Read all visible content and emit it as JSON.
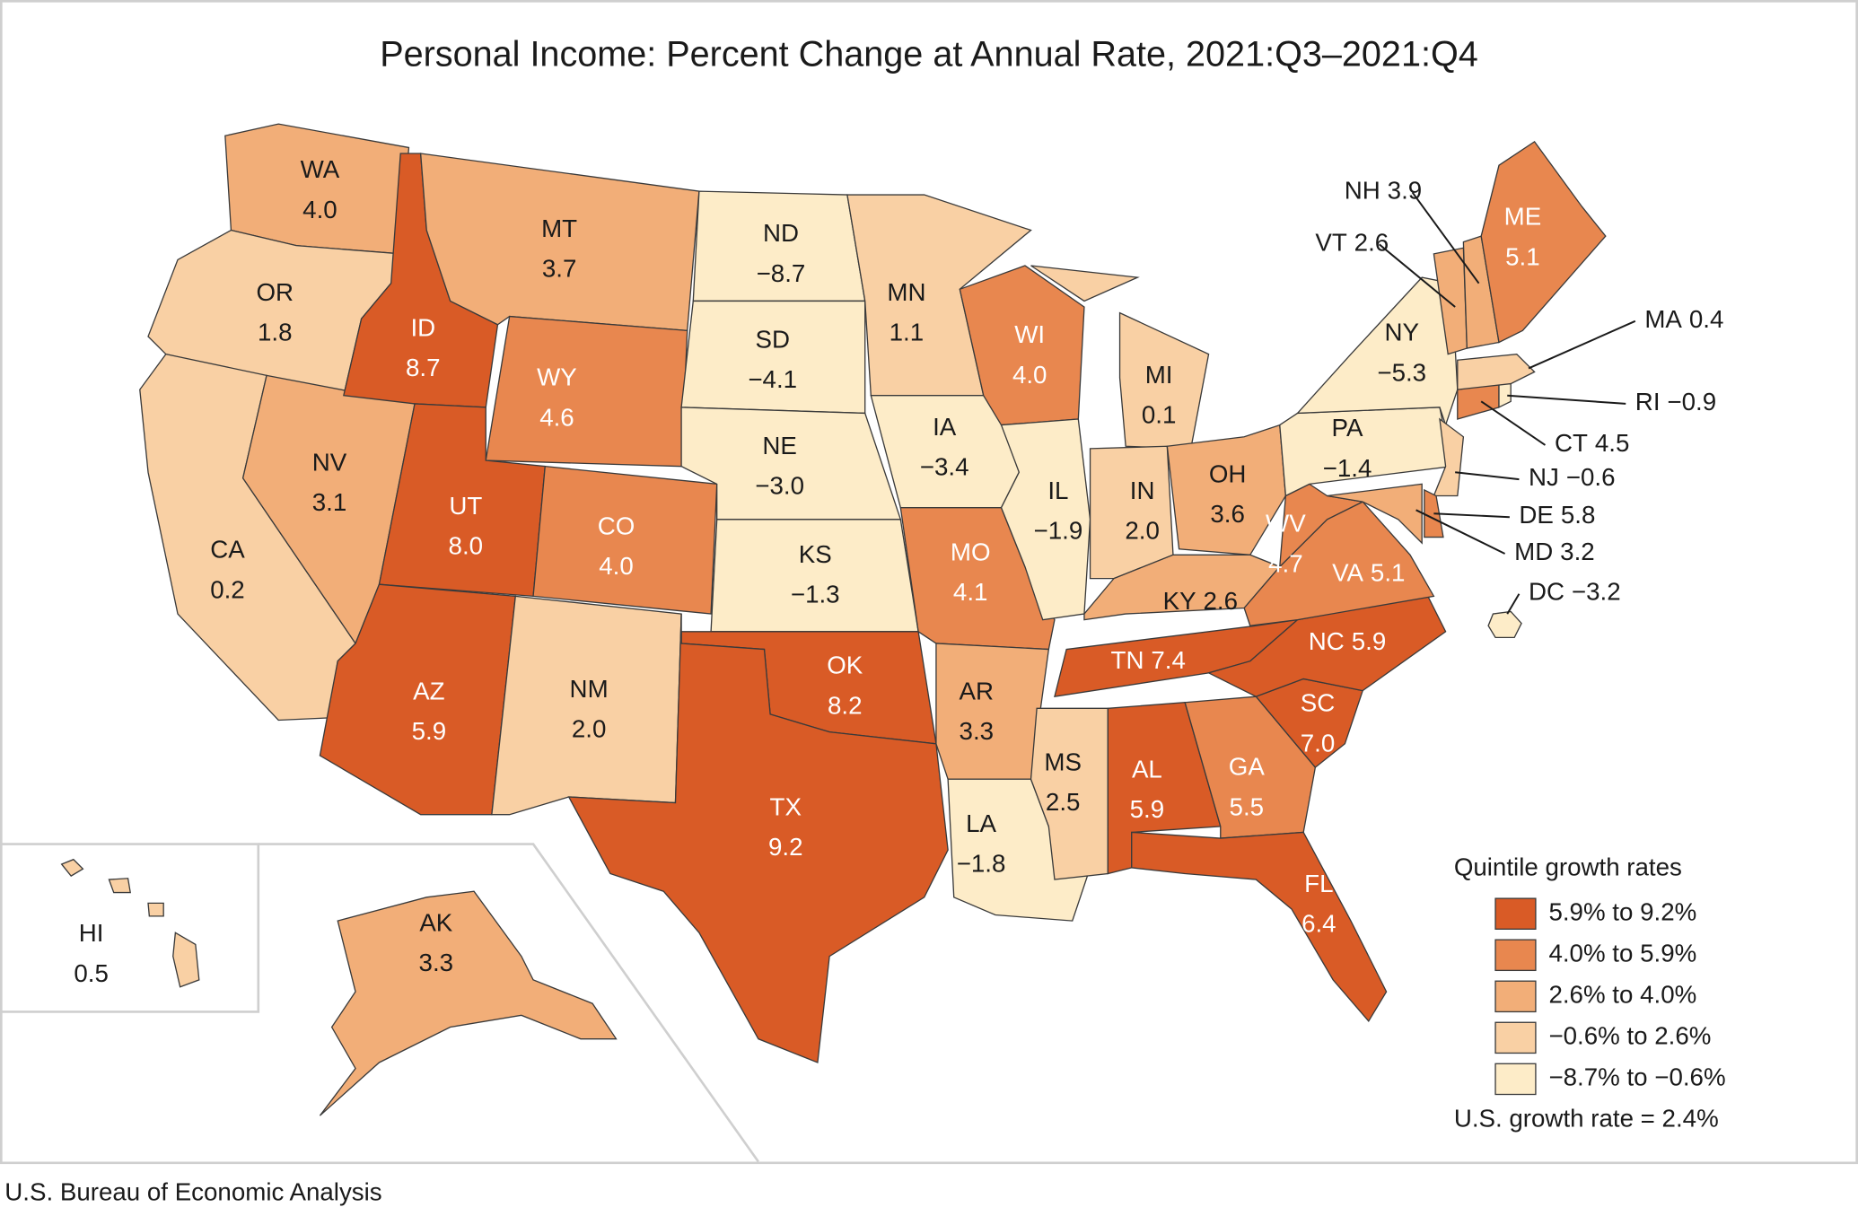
{
  "chart_data": {
    "type": "choropleth",
    "title": "Personal Income: Percent Change at Annual Rate, 2021:Q3–2021:Q4",
    "regions": [
      "WA",
      "OR",
      "CA",
      "NV",
      "ID",
      "MT",
      "WY",
      "UT",
      "CO",
      "AZ",
      "NM",
      "ND",
      "SD",
      "NE",
      "KS",
      "OK",
      "TX",
      "MN",
      "IA",
      "MO",
      "AR",
      "LA",
      "WI",
      "IL",
      "MI",
      "IN",
      "OH",
      "KY",
      "TN",
      "MS",
      "AL",
      "GA",
      "FL",
      "SC",
      "NC",
      "VA",
      "WV",
      "PA",
      "NY",
      "NJ",
      "DE",
      "MD",
      "DC",
      "CT",
      "RI",
      "MA",
      "VT",
      "NH",
      "ME",
      "AK",
      "HI"
    ],
    "values": [
      4.0,
      1.8,
      0.2,
      3.1,
      8.7,
      3.7,
      4.6,
      8.0,
      4.0,
      5.9,
      2.0,
      -8.7,
      -4.1,
      -3.0,
      -1.3,
      8.2,
      9.2,
      1.1,
      -3.4,
      4.1,
      3.3,
      -1.8,
      4.0,
      -1.9,
      0.1,
      2.0,
      3.6,
      2.6,
      7.4,
      2.5,
      5.9,
      5.5,
      6.4,
      7.0,
      5.9,
      5.1,
      4.7,
      -1.4,
      -5.3,
      -0.6,
      5.8,
      3.2,
      -3.2,
      4.5,
      -0.9,
      0.4,
      2.6,
      3.9,
      5.1,
      3.3,
      0.5
    ],
    "value_labels": [
      "4.0",
      "1.8",
      "0.2",
      "3.1",
      "8.7",
      "3.7",
      "4.6",
      "8.0",
      "4.0",
      "5.9",
      "2.0",
      "−8.7",
      "−4.1",
      "−3.0",
      "−1.3",
      "8.2",
      "9.2",
      "1.1",
      "−3.4",
      "4.1",
      "3.3",
      "−1.8",
      "4.0",
      "−1.9",
      "0.1",
      "2.0",
      "3.6",
      "2.6",
      "7.4",
      "2.5",
      "5.9",
      "5.5",
      "6.4",
      "7.0",
      "5.9",
      "5.1",
      "4.7",
      "−1.4",
      "−5.3",
      "−0.6",
      "5.8",
      "3.2",
      "−3.2",
      "4.5",
      "−0.9",
      "0.4",
      "2.6",
      "3.9",
      "5.1",
      "3.3",
      "0.5"
    ],
    "colors": [
      "#f2ae78",
      "#f9d0a4",
      "#f9d0a4",
      "#f2ae78",
      "#d95b26",
      "#f2ae78",
      "#e8874f",
      "#d95b26",
      "#e8874f",
      "#d95b26",
      "#f9d0a4",
      "#fdecc8",
      "#fdecc8",
      "#fdecc8",
      "#fdecc8",
      "#d95b26",
      "#d95b26",
      "#f9d0a4",
      "#fdecc8",
      "#e8874f",
      "#f2ae78",
      "#fdecc8",
      "#e8874f",
      "#fdecc8",
      "#f9d0a4",
      "#f9d0a4",
      "#f2ae78",
      "#f2ae78",
      "#d95b26",
      "#f9d0a4",
      "#d95b26",
      "#e8874f",
      "#d95b26",
      "#d95b26",
      "#d95b26",
      "#e8874f",
      "#e8874f",
      "#fdecc8",
      "#fdecc8",
      "#f9d0a4",
      "#e8874f",
      "#f2ae78",
      "#fdecc8",
      "#e8874f",
      "#fdecc8",
      "#f9d0a4",
      "#f2ae78",
      "#f2ae78",
      "#e8874f",
      "#f2ae78",
      "#f9d0a4"
    ],
    "legend": {
      "title": "Quintile growth rates",
      "items": [
        {
          "label": "5.9% to 9.2%",
          "color": "#d95b26"
        },
        {
          "label": "4.0% to 5.9%",
          "color": "#e8874f"
        },
        {
          "label": "2.6% to 4.0%",
          "color": "#f2ae78"
        },
        {
          "label": "−0.6% to 2.6%",
          "color": "#f9d0a4"
        },
        {
          "label": "−8.7% to −0.6%",
          "color": "#fdecc8"
        }
      ]
    },
    "us_rate": "U.S. growth rate = 2.4%",
    "source": "U.S. Bureau of Economic Analysis"
  }
}
